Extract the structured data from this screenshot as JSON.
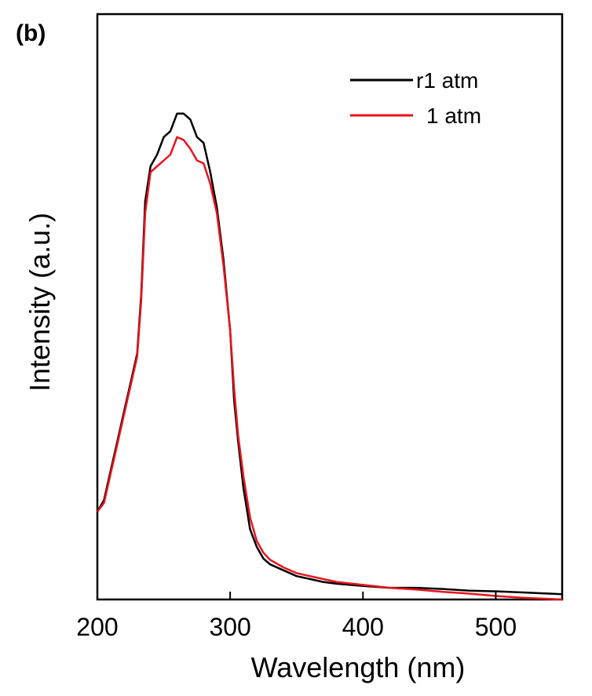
{
  "chart_data": {
    "type": "line",
    "panel_label": "(b)",
    "xlabel": "Wavelength (nm)",
    "ylabel": "Intensity (a.u.)",
    "xlim": [
      200,
      550
    ],
    "ylim": [
      0,
      100
    ],
    "xticks": [
      200,
      300,
      400,
      500
    ],
    "xtick_labels": [
      "200",
      "300",
      "400",
      "500"
    ],
    "yticks_shown": false,
    "grid": false,
    "legend_position": "top-right",
    "series": [
      {
        "name": "r1 atm",
        "color": "#000000",
        "x": [
          200,
          205,
          210,
          215,
          220,
          225,
          230,
          233,
          236,
          240,
          245,
          250,
          255,
          260,
          265,
          270,
          275,
          280,
          285,
          290,
          295,
          300,
          303,
          306,
          310,
          315,
          320,
          325,
          330,
          340,
          350,
          360,
          370,
          380,
          400,
          420,
          440,
          460,
          480,
          500,
          520,
          540,
          550
        ],
        "y": [
          15,
          17,
          22,
          27,
          32,
          37,
          42,
          52,
          68,
          74,
          76,
          79,
          80,
          83,
          83,
          82,
          79,
          78,
          73,
          67,
          58,
          46,
          34,
          27,
          19,
          12,
          9,
          7,
          6,
          5,
          4,
          3.5,
          3,
          2.7,
          2.3,
          2,
          2,
          1.8,
          1.5,
          1.4,
          1.2,
          1.0,
          0.9
        ]
      },
      {
        "name": "1 atm",
        "color": "#e8131d",
        "x": [
          200,
          205,
          210,
          215,
          220,
          225,
          230,
          233,
          236,
          240,
          245,
          250,
          255,
          260,
          265,
          270,
          275,
          280,
          285,
          290,
          295,
          300,
          303,
          306,
          310,
          315,
          320,
          325,
          330,
          340,
          350,
          360,
          370,
          380,
          400,
          420,
          440,
          460,
          480,
          500,
          520,
          540,
          550
        ],
        "y": [
          15,
          16.5,
          21.5,
          26.5,
          31.5,
          36.5,
          41.5,
          51,
          66,
          73,
          74,
          75,
          76,
          79,
          78.5,
          77,
          75,
          74.5,
          71,
          66,
          57,
          46,
          36,
          28,
          21,
          14,
          10,
          8,
          6.8,
          5.5,
          4.5,
          4,
          3.5,
          3,
          2.5,
          2,
          1.7,
          1.3,
          1,
          0.6,
          0.3,
          0.1,
          0
        ]
      }
    ]
  }
}
